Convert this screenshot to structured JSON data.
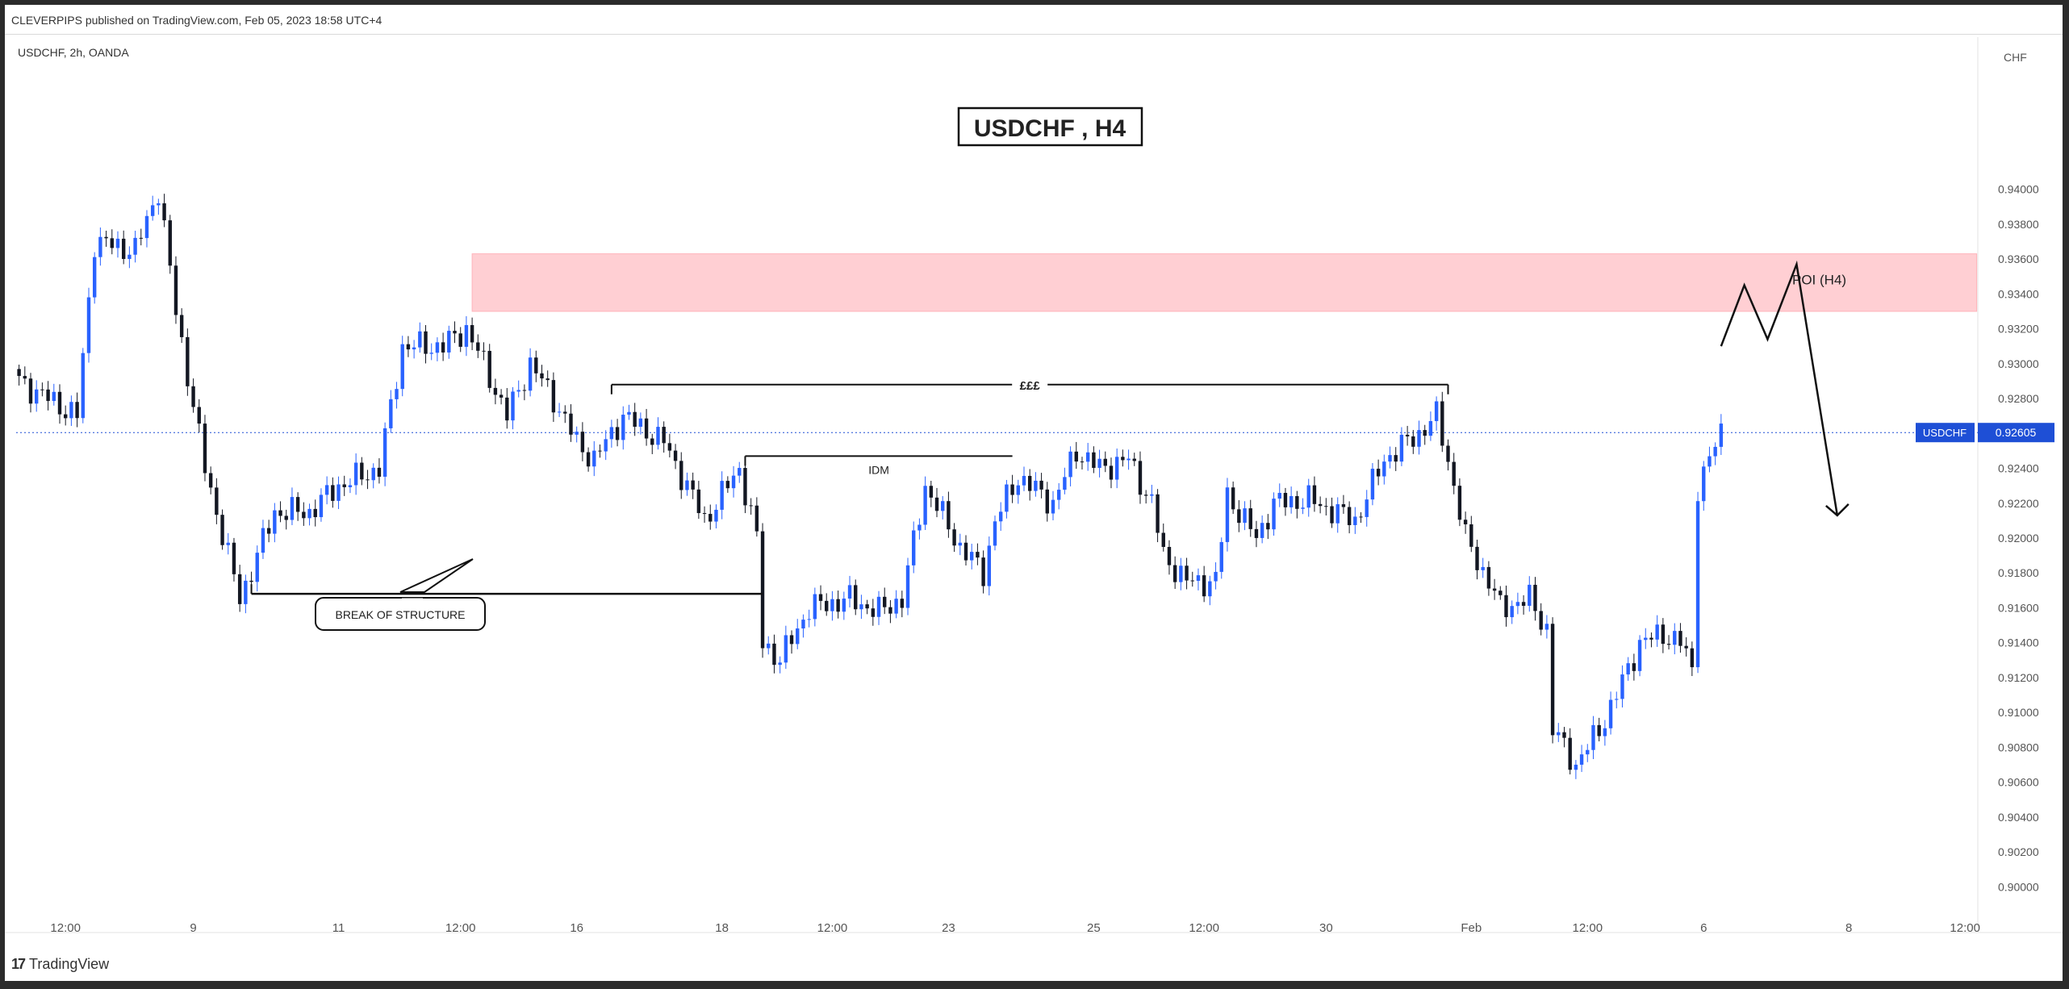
{
  "header": {
    "published": "CLEVERPIPS published on TradingView.com, Feb 05, 2023 18:58 UTC+4",
    "symbol_line": "USDCHF, 2h, OANDA"
  },
  "footer": {
    "brand": "TradingView",
    "logo_glyph": "17"
  },
  "colors": {
    "up": "#2962ff",
    "down": "#131722",
    "zone_fill": "#ffcfd3",
    "zone_edge": "#ffb3ba",
    "price_label": "#1e4fd6",
    "axis_text": "#555555"
  },
  "chart_data": {
    "type": "candlestick",
    "title": "USDCHF , H4",
    "price_axis_unit": "CHF",
    "ylim": [
      0.899,
      0.9478
    ],
    "y_ticks": [
      "0.94000",
      "0.93800",
      "0.93600",
      "0.93400",
      "0.93200",
      "0.93000",
      "0.92800",
      "0.92600",
      "0.92400",
      "0.92200",
      "0.92000",
      "0.91800",
      "0.91600",
      "0.91400",
      "0.91200",
      "0.91000",
      "0.90800",
      "0.90600",
      "0.90400",
      "0.90200",
      "0.90000"
    ],
    "x_ticks": [
      {
        "label": "12:00",
        "i": 8
      },
      {
        "label": "9",
        "i": 30
      },
      {
        "label": "11",
        "i": 55
      },
      {
        "label": "12:00",
        "i": 76
      },
      {
        "label": "16",
        "i": 96
      },
      {
        "label": "18",
        "i": 121
      },
      {
        "label": "12:00",
        "i": 140
      },
      {
        "label": "23",
        "i": 160
      },
      {
        "label": "25",
        "i": 185
      },
      {
        "label": "12:00",
        "i": 204
      },
      {
        "label": "30",
        "i": 225
      },
      {
        "label": "Feb",
        "i": 250
      },
      {
        "label": "12:00",
        "i": 270
      },
      {
        "label": "6",
        "i": 290
      },
      {
        "label": "8",
        "i": 315
      },
      {
        "label": "12:00",
        "i": 335
      }
    ],
    "n_bars": 337,
    "last_price": {
      "symbol": "USDCHF",
      "value": "0.92605",
      "price": 0.92605
    },
    "anchors": [
      [
        0,
        0.929
      ],
      [
        10,
        0.927
      ],
      [
        13,
        0.937
      ],
      [
        20,
        0.9365
      ],
      [
        24,
        0.94
      ],
      [
        27,
        0.933
      ],
      [
        32,
        0.924
      ],
      [
        38,
        0.9165
      ],
      [
        44,
        0.9215
      ],
      [
        50,
        0.9215
      ],
      [
        55,
        0.923
      ],
      [
        62,
        0.924
      ],
      [
        66,
        0.931
      ],
      [
        73,
        0.931
      ],
      [
        77,
        0.932
      ],
      [
        80,
        0.93
      ],
      [
        84,
        0.927
      ],
      [
        88,
        0.93
      ],
      [
        92,
        0.928
      ],
      [
        96,
        0.9255
      ],
      [
        99,
        0.9245
      ],
      [
        104,
        0.927
      ],
      [
        111,
        0.9255
      ],
      [
        115,
        0.923
      ],
      [
        118,
        0.921
      ],
      [
        124,
        0.924
      ],
      [
        127,
        0.92
      ],
      [
        128,
        0.914
      ],
      [
        131,
        0.913
      ],
      [
        136,
        0.916
      ],
      [
        143,
        0.9165
      ],
      [
        148,
        0.9158
      ],
      [
        152,
        0.9165
      ],
      [
        156,
        0.923
      ],
      [
        162,
        0.9195
      ],
      [
        166,
        0.918
      ],
      [
        168,
        0.921
      ],
      [
        172,
        0.9235
      ],
      [
        178,
        0.922
      ],
      [
        182,
        0.925
      ],
      [
        186,
        0.924
      ],
      [
        191,
        0.9245
      ],
      [
        195,
        0.922
      ],
      [
        197,
        0.919
      ],
      [
        201,
        0.9175
      ],
      [
        206,
        0.9175
      ],
      [
        208,
        0.9225
      ],
      [
        213,
        0.92
      ],
      [
        216,
        0.922
      ],
      [
        222,
        0.9222
      ],
      [
        230,
        0.921
      ],
      [
        235,
        0.9245
      ],
      [
        241,
        0.926
      ],
      [
        244,
        0.927
      ],
      [
        246,
        0.9245
      ],
      [
        249,
        0.92
      ],
      [
        253,
        0.9175
      ],
      [
        255,
        0.916
      ],
      [
        260,
        0.9165
      ],
      [
        263,
        0.9148
      ],
      [
        264,
        0.909
      ],
      [
        268,
        0.907
      ],
      [
        272,
        0.909
      ],
      [
        275,
        0.911
      ],
      [
        279,
        0.914
      ],
      [
        283,
        0.9145
      ],
      [
        286,
        0.914
      ],
      [
        288,
        0.9125
      ],
      [
        289,
        0.923
      ],
      [
        291,
        0.9245
      ],
      [
        293,
        0.92605
      ]
    ],
    "annotations": {
      "title_box": "USDCHF , H4",
      "poi_label": "POI (H4)",
      "poi_zone": {
        "from_i": 78,
        "to_i": 337,
        "top": 0.9363,
        "bottom": 0.933
      },
      "liquidity_label": "£££",
      "liquidity_line": {
        "from_i": 102,
        "to_i": 246,
        "price": 0.9288
      },
      "idm_label": "IDM",
      "idm_line": {
        "from_i": 125,
        "to_i": 171,
        "price": 0.9247
      },
      "bos_label": "BREAK OF STRUCTURE",
      "bos_line": {
        "from_i": 40,
        "to_i": 128,
        "price": 0.9168
      },
      "projection": [
        [
          293,
          0.931
        ],
        [
          297,
          0.9345
        ],
        [
          301,
          0.9314
        ],
        [
          306,
          0.9357
        ],
        [
          313,
          0.9213
        ]
      ]
    }
  }
}
